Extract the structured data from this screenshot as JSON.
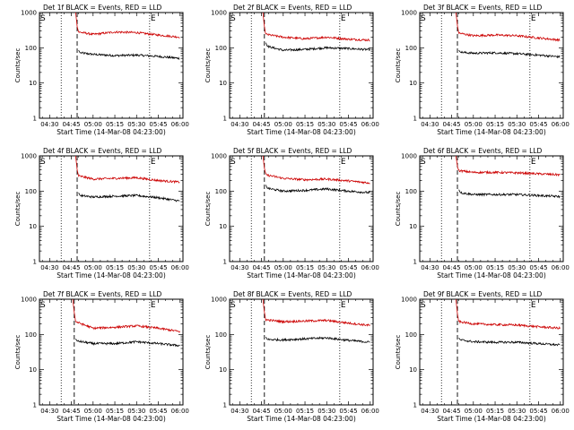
{
  "figure": {
    "title_template": "BLACK = Events, RED = LLD",
    "ylabel": "Counts/sec",
    "xlabel": "Start Time (14-Mar-08 04:23:00)",
    "start_marker": "S",
    "end_marker": "E"
  },
  "chart_data": [
    {
      "type": "line",
      "title": "Det 1f BLACK = Events, RED = LLD",
      "xlabel": "Start Time (14-Mar-08 04:23:00)",
      "ylabel": "Counts/sec",
      "yscale": "log",
      "ylim": [
        1,
        1000
      ],
      "xlim": [
        "04:23",
        "06:02"
      ],
      "xticks": [
        "04:30",
        "04:45",
        "05:00",
        "05:15",
        "05:30",
        "05:45",
        "06:00"
      ],
      "yticks": [
        "1",
        "10",
        "100",
        "1000"
      ],
      "vlines_dotted": [
        "04:38",
        "05:39"
      ],
      "vline_dashed": "04:49",
      "series": [
        {
          "name": "Events",
          "color": "#000000",
          "x": [
            "04:50",
            "04:51",
            "05:00",
            "05:15",
            "05:30",
            "05:45",
            "06:00"
          ],
          "y": [
            85,
            72,
            65,
            60,
            62,
            57,
            50
          ]
        },
        {
          "name": "LLD",
          "color": "#cc0000",
          "x": [
            "04:48",
            "04:49",
            "04:50",
            "05:00",
            "05:15",
            "05:30",
            "05:45",
            "06:00"
          ],
          "y": [
            1000,
            400,
            280,
            240,
            280,
            270,
            230,
            200
          ]
        }
      ]
    },
    {
      "type": "line",
      "title": "Det 2f BLACK = Events, RED = LLD",
      "xlabel": "Start Time (14-Mar-08 04:23:00)",
      "ylabel": "Counts/sec",
      "yscale": "log",
      "ylim": [
        1,
        1000
      ],
      "xlim": [
        "04:23",
        "06:02"
      ],
      "xticks": [
        "04:30",
        "04:45",
        "05:00",
        "05:15",
        "05:30",
        "05:45",
        "06:00"
      ],
      "yticks": [
        "1",
        "10",
        "100",
        "1000"
      ],
      "vlines_dotted": [
        "04:38",
        "05:39"
      ],
      "vline_dashed": "04:47",
      "series": [
        {
          "name": "Events",
          "color": "#000000",
          "x": [
            "04:48",
            "04:49",
            "05:00",
            "05:15",
            "05:30",
            "05:45",
            "06:00"
          ],
          "y": [
            140,
            110,
            85,
            90,
            100,
            95,
            88
          ]
        },
        {
          "name": "LLD",
          "color": "#cc0000",
          "x": [
            "04:46",
            "04:47",
            "04:48",
            "05:00",
            "05:15",
            "05:30",
            "05:45",
            "06:00"
          ],
          "y": [
            1000,
            400,
            240,
            200,
            180,
            200,
            175,
            165
          ]
        }
      ]
    },
    {
      "type": "line",
      "title": "Det 3f BLACK = Events, RED = LLD",
      "xlabel": "Start Time (14-Mar-08 04:23:00)",
      "ylabel": "Counts/sec",
      "yscale": "log",
      "ylim": [
        1,
        1000
      ],
      "xlim": [
        "04:23",
        "06:02"
      ],
      "xticks": [
        "04:30",
        "04:45",
        "05:00",
        "05:15",
        "05:30",
        "05:45",
        "06:00"
      ],
      "yticks": [
        "1",
        "10",
        "100",
        "1000"
      ],
      "vlines_dotted": [
        "04:38",
        "05:39"
      ],
      "vline_dashed": "04:49",
      "series": [
        {
          "name": "Events",
          "color": "#000000",
          "x": [
            "04:50",
            "04:51",
            "05:00",
            "05:15",
            "05:30",
            "05:45",
            "06:00"
          ],
          "y": [
            85,
            75,
            70,
            72,
            68,
            62,
            55
          ]
        },
        {
          "name": "LLD",
          "color": "#cc0000",
          "x": [
            "04:48",
            "04:49",
            "04:50",
            "05:00",
            "05:15",
            "05:30",
            "05:45",
            "06:00"
          ],
          "y": [
            1000,
            420,
            260,
            220,
            230,
            220,
            190,
            165
          ]
        }
      ]
    },
    {
      "type": "line",
      "title": "Det 4f BLACK = Events, RED = LLD",
      "xlabel": "Start Time (14-Mar-08 04:23:00)",
      "ylabel": "Counts/sec",
      "yscale": "log",
      "ylim": [
        1,
        1000
      ],
      "xlim": [
        "04:23",
        "06:02"
      ],
      "xticks": [
        "04:30",
        "04:45",
        "05:00",
        "05:15",
        "05:30",
        "05:45",
        "06:00"
      ],
      "yticks": [
        "1",
        "10",
        "100",
        "1000"
      ],
      "vlines_dotted": [
        "04:38",
        "05:39"
      ],
      "vline_dashed": "04:49",
      "series": [
        {
          "name": "Events",
          "color": "#000000",
          "x": [
            "04:50",
            "04:51",
            "05:00",
            "05:15",
            "05:30",
            "05:45",
            "06:00"
          ],
          "y": [
            90,
            75,
            68,
            72,
            75,
            65,
            52
          ]
        },
        {
          "name": "LLD",
          "color": "#cc0000",
          "x": [
            "04:48",
            "04:49",
            "04:50",
            "05:00",
            "05:15",
            "05:30",
            "05:45",
            "06:00"
          ],
          "y": [
            1000,
            400,
            270,
            220,
            230,
            240,
            200,
            180
          ]
        }
      ]
    },
    {
      "type": "line",
      "title": "Det 5f BLACK = Events, RED = LLD",
      "xlabel": "Start Time (14-Mar-08 04:23:00)",
      "ylabel": "Counts/sec",
      "yscale": "log",
      "ylim": [
        1,
        1000
      ],
      "xlim": [
        "04:23",
        "06:02"
      ],
      "xticks": [
        "04:30",
        "04:45",
        "05:00",
        "05:15",
        "05:30",
        "05:45",
        "06:00"
      ],
      "yticks": [
        "1",
        "10",
        "100",
        "1000"
      ],
      "vlines_dotted": [
        "04:38",
        "05:39"
      ],
      "vline_dashed": "04:47",
      "series": [
        {
          "name": "Events",
          "color": "#000000",
          "x": [
            "04:48",
            "04:49",
            "05:00",
            "05:15",
            "05:30",
            "05:45",
            "06:00"
          ],
          "y": [
            150,
            120,
            100,
            105,
            115,
            100,
            90
          ]
        },
        {
          "name": "LLD",
          "color": "#cc0000",
          "x": [
            "04:46",
            "04:47",
            "04:48",
            "05:00",
            "05:15",
            "05:30",
            "05:45",
            "06:00"
          ],
          "y": [
            1000,
            450,
            290,
            230,
            210,
            220,
            195,
            170
          ]
        }
      ]
    },
    {
      "type": "line",
      "title": "Det 6f BLACK = Events, RED = LLD",
      "xlabel": "Start Time (14-Mar-08 04:23:00)",
      "ylabel": "Counts/sec",
      "yscale": "log",
      "ylim": [
        1,
        1000
      ],
      "xlim": [
        "04:23",
        "06:02"
      ],
      "xticks": [
        "04:30",
        "04:45",
        "05:00",
        "05:15",
        "05:30",
        "05:45",
        "06:00"
      ],
      "yticks": [
        "1",
        "10",
        "100",
        "1000"
      ],
      "vlines_dotted": [
        "04:38",
        "05:39"
      ],
      "vline_dashed": "04:49",
      "series": [
        {
          "name": "Events",
          "color": "#000000",
          "x": [
            "04:50",
            "04:51",
            "05:00",
            "05:15",
            "05:30",
            "05:45",
            "06:00"
          ],
          "y": [
            110,
            90,
            80,
            80,
            80,
            75,
            70
          ]
        },
        {
          "name": "LLD",
          "color": "#cc0000",
          "x": [
            "04:48",
            "04:49",
            "04:50",
            "05:00",
            "05:15",
            "05:30",
            "05:45",
            "06:00"
          ],
          "y": [
            1000,
            500,
            380,
            340,
            340,
            330,
            310,
            290
          ]
        }
      ]
    },
    {
      "type": "line",
      "title": "Det 7f BLACK = Events, RED = LLD",
      "xlabel": "Start Time (14-Mar-08 04:23:00)",
      "ylabel": "Counts/sec",
      "yscale": "log",
      "ylim": [
        1,
        1000
      ],
      "xlim": [
        "04:23",
        "06:02"
      ],
      "xticks": [
        "04:30",
        "04:45",
        "05:00",
        "05:15",
        "05:30",
        "05:45",
        "06:00"
      ],
      "yticks": [
        "1",
        "10",
        "100",
        "1000"
      ],
      "vlines_dotted": [
        "04:38",
        "05:39"
      ],
      "vline_dashed": "04:47",
      "series": [
        {
          "name": "Events",
          "color": "#000000",
          "x": [
            "04:48",
            "04:49",
            "05:00",
            "05:15",
            "05:30",
            "05:45",
            "06:00"
          ],
          "y": [
            75,
            65,
            55,
            55,
            62,
            55,
            48
          ]
        },
        {
          "name": "LLD",
          "color": "#cc0000",
          "x": [
            "04:46",
            "04:47",
            "04:48",
            "05:00",
            "05:15",
            "05:30",
            "05:45",
            "06:00"
          ],
          "y": [
            1000,
            420,
            230,
            150,
            160,
            175,
            150,
            120
          ]
        }
      ]
    },
    {
      "type": "line",
      "title": "Det 8f BLACK = Events, RED = LLD",
      "xlabel": "Start Time (14-Mar-08 04:23:00)",
      "ylabel": "Counts/sec",
      "yscale": "log",
      "ylim": [
        1,
        1000
      ],
      "xlim": [
        "04:23",
        "06:02"
      ],
      "xticks": [
        "04:30",
        "04:45",
        "05:00",
        "05:15",
        "05:30",
        "05:45",
        "06:00"
      ],
      "yticks": [
        "1",
        "10",
        "100",
        "1000"
      ],
      "vlines_dotted": [
        "04:38",
        "05:39"
      ],
      "vline_dashed": "04:47",
      "series": [
        {
          "name": "Events",
          "color": "#000000",
          "x": [
            "04:48",
            "04:49",
            "05:00",
            "05:15",
            "05:30",
            "05:45",
            "06:00"
          ],
          "y": [
            85,
            72,
            70,
            75,
            80,
            68,
            60
          ]
        },
        {
          "name": "LLD",
          "color": "#cc0000",
          "x": [
            "04:46",
            "04:47",
            "04:48",
            "05:00",
            "05:15",
            "05:30",
            "05:45",
            "06:00"
          ],
          "y": [
            1000,
            430,
            260,
            230,
            240,
            250,
            210,
            180
          ]
        }
      ]
    },
    {
      "type": "line",
      "title": "Det 9f BLACK = Events, RED = LLD",
      "xlabel": "Start Time (14-Mar-08 04:23:00)",
      "ylabel": "Counts/sec",
      "yscale": "log",
      "ylim": [
        1,
        1000
      ],
      "xlim": [
        "04:23",
        "06:02"
      ],
      "xticks": [
        "04:30",
        "04:45",
        "05:00",
        "05:15",
        "05:30",
        "05:45",
        "06:00"
      ],
      "yticks": [
        "1",
        "10",
        "100",
        "1000"
      ],
      "vlines_dotted": [
        "04:38",
        "05:39"
      ],
      "vline_dashed": "04:49",
      "series": [
        {
          "name": "Events",
          "color": "#000000",
          "x": [
            "04:50",
            "04:51",
            "05:00",
            "05:15",
            "05:30",
            "05:45",
            "06:00"
          ],
          "y": [
            80,
            70,
            62,
            60,
            60,
            55,
            50
          ]
        },
        {
          "name": "LLD",
          "color": "#cc0000",
          "x": [
            "04:48",
            "04:49",
            "04:50",
            "05:00",
            "05:15",
            "05:30",
            "05:45",
            "06:00"
          ],
          "y": [
            1000,
            380,
            230,
            200,
            190,
            185,
            165,
            150
          ]
        }
      ]
    }
  ]
}
